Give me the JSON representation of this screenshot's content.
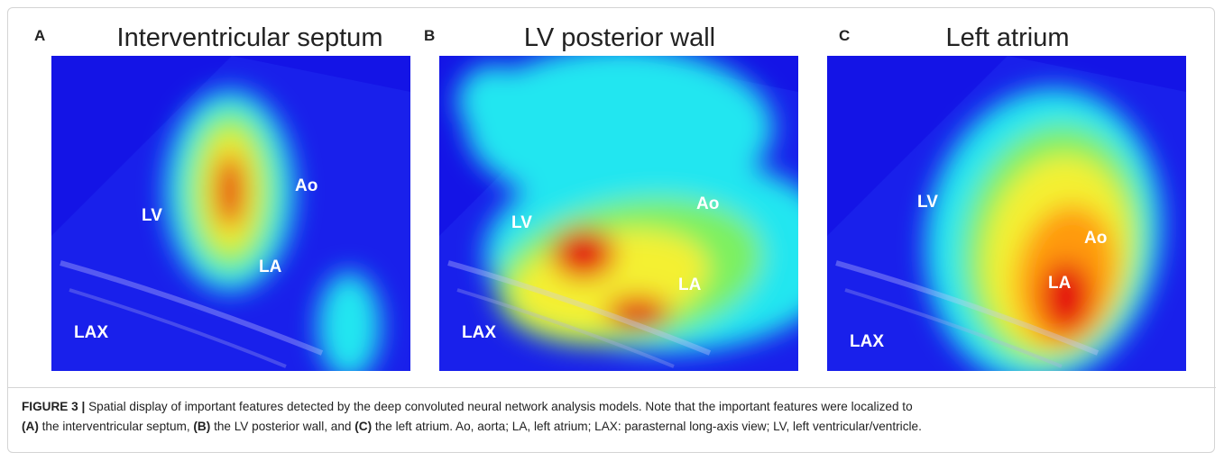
{
  "figure": {
    "panels": [
      {
        "letter": "A",
        "title": "Interventricular septum",
        "labels": [
          "LV",
          "Ao",
          "LA",
          "LAX"
        ]
      },
      {
        "letter": "B",
        "title": "LV posterior wall",
        "labels": [
          "LV",
          "Ao",
          "LA",
          "LAX"
        ]
      },
      {
        "letter": "C",
        "title": "Left atrium",
        "labels": [
          "LV",
          "Ao",
          "LA",
          "LAX"
        ]
      }
    ],
    "caption": {
      "label": "FIGURE 3 |",
      "text1": "Spatial display of important features detected by the deep convoluted neural network analysis models. Note that the important features were localized to",
      "ref_a": "(A)",
      "text_a": "the interventricular septum,",
      "ref_b": "(B)",
      "text_b": "the LV posterior wall, and",
      "ref_c": "(C)",
      "text_c": "the left atrium. Ao, aorta; LA, left atrium; LAX: parasternal long-axis view; LV, left ventricular/ventricle."
    }
  }
}
